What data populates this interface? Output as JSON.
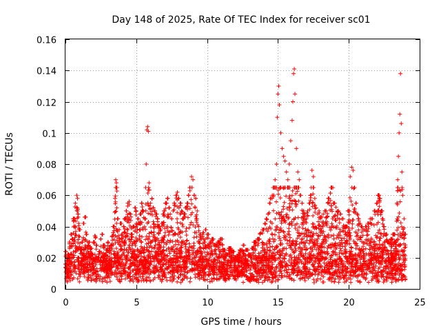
{
  "chart_data": {
    "type": "scatter",
    "title": "Day 148 of 2025, Rate Of TEC Index for receiver sc01",
    "xlabel": "GPS time / hours",
    "ylabel": "ROTI / TECUs",
    "xlim": [
      0,
      25
    ],
    "ylim": [
      0,
      0.16
    ],
    "xticks": [
      0,
      5,
      10,
      15,
      20,
      25
    ],
    "yticks": [
      0,
      0.02,
      0.04,
      0.06,
      0.08,
      0.1,
      0.12,
      0.14,
      0.16
    ],
    "xtick_labels": [
      "0",
      "5",
      "10",
      "15",
      "20",
      "25"
    ],
    "ytick_labels": [
      "0",
      "0.02",
      "0.04",
      "0.06",
      "0.08",
      "0.1",
      "0.12",
      "0.14",
      "0.16"
    ],
    "grid": true,
    "marker": "+",
    "color": "#ff0000",
    "series": [
      {
        "name": "ROTI",
        "points": [
          [
            0.0,
            0.024
          ],
          [
            0.1,
            0.018
          ],
          [
            0.2,
            0.022
          ],
          [
            0.3,
            0.03
          ],
          [
            0.4,
            0.035
          ],
          [
            0.5,
            0.032
          ],
          [
            0.6,
            0.045
          ],
          [
            0.7,
            0.055
          ],
          [
            0.8,
            0.06
          ],
          [
            0.85,
            0.058
          ],
          [
            0.9,
            0.048
          ],
          [
            1.0,
            0.038
          ],
          [
            1.1,
            0.025
          ],
          [
            1.2,
            0.03
          ],
          [
            1.3,
            0.042
          ],
          [
            1.4,
            0.046
          ],
          [
            1.5,
            0.035
          ],
          [
            1.6,
            0.028
          ],
          [
            1.7,
            0.03
          ],
          [
            1.8,
            0.026
          ],
          [
            1.9,
            0.022
          ],
          [
            2.0,
            0.03
          ],
          [
            2.1,
            0.034
          ],
          [
            2.2,
            0.028
          ],
          [
            2.3,
            0.02
          ],
          [
            2.4,
            0.024
          ],
          [
            2.5,
            0.032
          ],
          [
            2.6,
            0.035
          ],
          [
            2.7,
            0.028
          ],
          [
            2.8,
            0.022
          ],
          [
            2.9,
            0.025
          ],
          [
            3.0,
            0.03
          ],
          [
            3.1,
            0.026
          ],
          [
            3.2,
            0.028
          ],
          [
            3.3,
            0.034
          ],
          [
            3.4,
            0.04
          ],
          [
            3.5,
            0.058
          ],
          [
            3.55,
            0.07
          ],
          [
            3.6,
            0.068
          ],
          [
            3.7,
            0.045
          ],
          [
            3.8,
            0.038
          ],
          [
            3.9,
            0.042
          ],
          [
            4.0,
            0.035
          ],
          [
            4.1,
            0.04
          ],
          [
            4.2,
            0.045
          ],
          [
            4.3,
            0.05
          ],
          [
            4.4,
            0.055
          ],
          [
            4.5,
            0.056
          ],
          [
            4.6,
            0.048
          ],
          [
            4.7,
            0.035
          ],
          [
            4.8,
            0.04
          ],
          [
            4.9,
            0.052
          ],
          [
            5.0,
            0.05
          ],
          [
            5.1,
            0.045
          ],
          [
            5.2,
            0.042
          ],
          [
            5.3,
            0.048
          ],
          [
            5.4,
            0.055
          ],
          [
            5.5,
            0.05
          ],
          [
            5.6,
            0.045
          ],
          [
            5.7,
            0.08
          ],
          [
            5.75,
            0.102
          ],
          [
            5.8,
            0.104
          ],
          [
            5.85,
            0.101
          ],
          [
            5.9,
            0.068
          ],
          [
            6.0,
            0.055
          ],
          [
            6.1,
            0.058
          ],
          [
            6.2,
            0.052
          ],
          [
            6.3,
            0.05
          ],
          [
            6.4,
            0.048
          ],
          [
            6.5,
            0.045
          ],
          [
            6.6,
            0.04
          ],
          [
            6.7,
            0.038
          ],
          [
            6.8,
            0.042
          ],
          [
            6.9,
            0.048
          ],
          [
            7.0,
            0.05
          ],
          [
            7.1,
            0.055
          ],
          [
            7.2,
            0.058
          ],
          [
            7.3,
            0.052
          ],
          [
            7.4,
            0.048
          ],
          [
            7.5,
            0.045
          ],
          [
            7.6,
            0.05
          ],
          [
            7.7,
            0.055
          ],
          [
            7.8,
            0.06
          ],
          [
            7.9,
            0.062
          ],
          [
            8.0,
            0.058
          ],
          [
            8.1,
            0.055
          ],
          [
            8.2,
            0.05
          ],
          [
            8.3,
            0.045
          ],
          [
            8.4,
            0.048
          ],
          [
            8.5,
            0.052
          ],
          [
            8.6,
            0.055
          ],
          [
            8.7,
            0.06
          ],
          [
            8.8,
            0.065
          ],
          [
            8.9,
            0.072
          ],
          [
            9.0,
            0.07
          ],
          [
            9.1,
            0.06
          ],
          [
            9.2,
            0.058
          ],
          [
            9.3,
            0.05
          ],
          [
            9.4,
            0.04
          ],
          [
            9.5,
            0.035
          ],
          [
            9.6,
            0.032
          ],
          [
            9.7,
            0.036
          ],
          [
            9.8,
            0.03
          ],
          [
            9.9,
            0.038
          ],
          [
            10.0,
            0.035
          ],
          [
            10.2,
            0.03
          ],
          [
            10.4,
            0.032
          ],
          [
            10.6,
            0.028
          ],
          [
            10.8,
            0.03
          ],
          [
            11.0,
            0.032
          ],
          [
            11.2,
            0.025
          ],
          [
            11.4,
            0.022
          ],
          [
            11.6,
            0.026
          ],
          [
            11.8,
            0.024
          ],
          [
            12.0,
            0.02
          ],
          [
            12.2,
            0.022
          ],
          [
            12.4,
            0.025
          ],
          [
            12.6,
            0.028
          ],
          [
            12.8,
            0.025
          ],
          [
            13.0,
            0.022
          ],
          [
            13.2,
            0.026
          ],
          [
            13.4,
            0.03
          ],
          [
            13.6,
            0.032
          ],
          [
            13.8,
            0.036
          ],
          [
            14.0,
            0.038
          ],
          [
            14.1,
            0.042
          ],
          [
            14.2,
            0.045
          ],
          [
            14.3,
            0.048
          ],
          [
            14.4,
            0.055
          ],
          [
            14.5,
            0.058
          ],
          [
            14.6,
            0.06
          ],
          [
            14.7,
            0.065
          ],
          [
            14.8,
            0.07
          ],
          [
            14.9,
            0.08
          ],
          [
            14.95,
            0.11
          ],
          [
            15.0,
            0.125
          ],
          [
            15.05,
            0.13
          ],
          [
            15.1,
            0.118
          ],
          [
            15.2,
            0.1
          ],
          [
            15.3,
            0.09
          ],
          [
            15.4,
            0.085
          ],
          [
            15.5,
            0.082
          ],
          [
            15.6,
            0.075
          ],
          [
            15.7,
            0.07
          ],
          [
            15.8,
            0.08
          ],
          [
            15.9,
            0.095
          ],
          [
            16.0,
            0.108
          ],
          [
            16.05,
            0.12
          ],
          [
            16.1,
            0.138
          ],
          [
            16.15,
            0.141
          ],
          [
            16.2,
            0.125
          ],
          [
            16.3,
            0.09
          ],
          [
            16.4,
            0.075
          ],
          [
            16.5,
            0.07
          ],
          [
            16.6,
            0.06
          ],
          [
            16.7,
            0.055
          ],
          [
            16.8,
            0.05
          ],
          [
            16.9,
            0.048
          ],
          [
            17.0,
            0.045
          ],
          [
            17.1,
            0.05
          ],
          [
            17.2,
            0.055
          ],
          [
            17.3,
            0.06
          ],
          [
            17.4,
            0.076
          ],
          [
            17.5,
            0.072
          ],
          [
            17.6,
            0.058
          ],
          [
            17.7,
            0.052
          ],
          [
            17.8,
            0.048
          ],
          [
            17.9,
            0.05
          ],
          [
            18.0,
            0.046
          ],
          [
            18.2,
            0.048
          ],
          [
            18.4,
            0.05
          ],
          [
            18.6,
            0.058
          ],
          [
            18.8,
            0.065
          ],
          [
            19.0,
            0.055
          ],
          [
            19.2,
            0.05
          ],
          [
            19.4,
            0.048
          ],
          [
            19.6,
            0.045
          ],
          [
            19.8,
            0.04
          ],
          [
            20.0,
            0.05
          ],
          [
            20.1,
            0.072
          ],
          [
            20.2,
            0.078
          ],
          [
            20.3,
            0.076
          ],
          [
            20.4,
            0.065
          ],
          [
            20.5,
            0.055
          ],
          [
            20.6,
            0.048
          ],
          [
            20.7,
            0.045
          ],
          [
            20.8,
            0.042
          ],
          [
            20.9,
            0.04
          ],
          [
            21.0,
            0.038
          ],
          [
            21.2,
            0.04
          ],
          [
            21.4,
            0.042
          ],
          [
            21.6,
            0.045
          ],
          [
            21.8,
            0.05
          ],
          [
            22.0,
            0.055
          ],
          [
            22.1,
            0.06
          ],
          [
            22.2,
            0.058
          ],
          [
            22.3,
            0.05
          ],
          [
            22.4,
            0.045
          ],
          [
            22.5,
            0.04
          ],
          [
            22.6,
            0.035
          ],
          [
            22.8,
            0.03
          ],
          [
            23.0,
            0.032
          ],
          [
            23.2,
            0.035
          ],
          [
            23.3,
            0.03
          ],
          [
            23.4,
            0.055
          ],
          [
            23.45,
            0.07
          ],
          [
            23.5,
            0.085
          ],
          [
            23.55,
            0.1
          ],
          [
            23.6,
            0.112
          ],
          [
            23.65,
            0.138
          ],
          [
            23.7,
            0.106
          ],
          [
            23.75,
            0.075
          ],
          [
            23.8,
            0.06
          ],
          [
            23.9,
            0.045
          ],
          [
            24.0,
            0.035
          ]
        ]
      }
    ]
  }
}
